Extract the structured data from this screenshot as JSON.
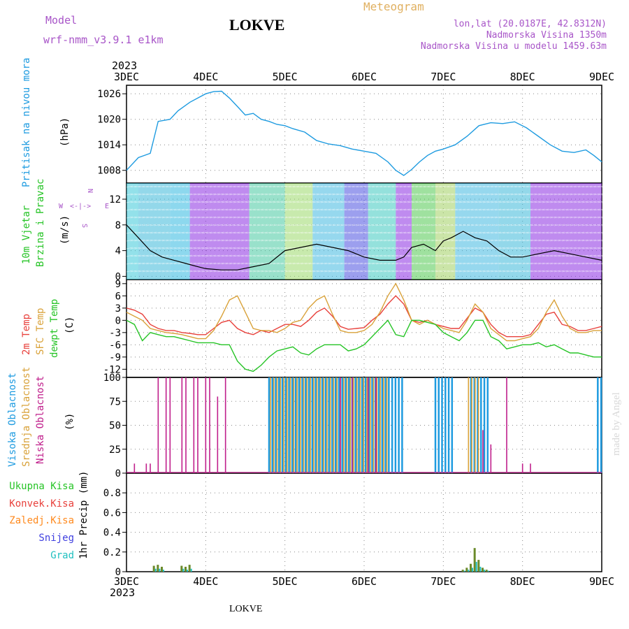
{
  "header": {
    "model_label": "Model",
    "model_value": "wrf-nmm_v3.9.1 e1km",
    "station": "LOKVE",
    "product": "Meteogram",
    "coords": "lon,lat (20.0187E, 42.8312N)",
    "elev": "Nadmorska Visina 1350m",
    "elev_model": "Nadmorska Visina u modelu 1459.63m",
    "footer_station": "LOKVE",
    "watermark": "made by Angel",
    "year_top": "2023",
    "year_bottom": "2023"
  },
  "colors": {
    "pressure": "#1e9be0",
    "temp2m": "#e8413c",
    "sfc": "#d9a23a",
    "dewpt": "#26c426",
    "high_cloud": "#1e9be0",
    "mid_cloud": "#d9a23a",
    "low_cloud": "#c0208c",
    "rain_total": "#26c426",
    "rain_conv": "#e8413c",
    "freezing": "#ff8a1e",
    "snow": "#4040e0",
    "graupel": "#20c0c0",
    "purple_text": "#a855c8",
    "orange_text": "#e0b060"
  },
  "x_axis": {
    "ticks": [
      "3DEC",
      "4DEC",
      "5DEC",
      "6DEC",
      "7DEC",
      "8DEC",
      "9DEC"
    ],
    "start": "2023-12-03 00:00",
    "end": "2023-12-09 00:00"
  },
  "wind_legend": {
    "n": "N",
    "e": "E",
    "w": "W",
    "s": "S",
    "arrow": "<-|->"
  },
  "panels": {
    "pressure": {
      "ylabel": "Pritisak na nivou mora",
      "unit": "(hPa)",
      "ticks": [
        1008,
        1014,
        1020,
        1026
      ]
    },
    "wind": {
      "ylabel1": "10m Vjetar",
      "ylabel2": "Brzina i Pravac",
      "unit": "(m/s)",
      "ticks": [
        0,
        4,
        8,
        12
      ]
    },
    "temp": {
      "ylabel1": "2m Temp",
      "ylabel2": "SFC Temp",
      "ylabel3": "dewpt Temp",
      "unit": "(C)",
      "ticks": [
        -12,
        -9,
        -6,
        -3,
        0,
        3,
        6,
        9
      ]
    },
    "cloud": {
      "ylabel1": "Visoka Oblacnost",
      "ylabel2": "Srednja Oblacnost",
      "ylabel3": "Niska Oblacnost",
      "unit": "(%)",
      "ticks": [
        0,
        25,
        50,
        75,
        100
      ]
    },
    "precip": {
      "legend": [
        "Ukupna Kisa",
        "Konvek.Kisa",
        "Zaledj.Kisa",
        "Snijeg",
        "Grad"
      ],
      "ylabel": "1hr Precip (mm)",
      "ticks": [
        0,
        0.2,
        0.4,
        0.6,
        0.8
      ]
    }
  },
  "chart_data": [
    {
      "type": "line",
      "ylabel": "Pritisak na nivou mora",
      "unit": "hPa",
      "ylim": [
        1005,
        1028
      ],
      "x_unit": "day",
      "x": [
        0,
        0.15,
        0.3,
        0.4,
        0.55,
        0.65,
        0.8,
        0.9,
        1,
        1.1,
        1.2,
        1.3,
        1.4,
        1.5,
        1.6,
        1.7,
        1.8,
        1.9,
        2,
        2.1,
        2.25,
        2.4,
        2.55,
        2.7,
        2.85,
        3,
        3.15,
        3.3,
        3.4,
        3.5,
        3.6,
        3.7,
        3.8,
        3.9,
        4,
        4.15,
        4.3,
        4.45,
        4.6,
        4.75,
        4.9,
        5.05,
        5.2,
        5.35,
        5.5,
        5.65,
        5.8,
        5.9,
        6
      ],
      "series": [
        {
          "name": "Pritisak na nivou mora",
          "values": [
            1008,
            1011,
            1012,
            1019.5,
            1020,
            1022,
            1024,
            1025,
            1026,
            1026.5,
            1026.6,
            1025,
            1023,
            1021,
            1021.4,
            1020,
            1019.5,
            1018.8,
            1018.5,
            1017.8,
            1017,
            1015,
            1014.2,
            1013.8,
            1013,
            1012.5,
            1012,
            1010,
            1008,
            1006.8,
            1008.2,
            1010,
            1011.5,
            1012.5,
            1013,
            1014,
            1016,
            1018.5,
            1019.2,
            1019,
            1019.4,
            1018,
            1016,
            1014,
            1012.5,
            1012.2,
            1012.8,
            1011.5,
            1010
          ]
        }
      ]
    },
    {
      "type": "line",
      "ylabel": "10m Vjetar Brzina i Pravac",
      "unit": "m/s",
      "ylim": [
        -0.5,
        14.5
      ],
      "x_unit": "day",
      "x": [
        0,
        0.15,
        0.3,
        0.45,
        0.6,
        0.75,
        0.9,
        1,
        1.2,
        1.4,
        1.6,
        1.8,
        2,
        2.2,
        2.4,
        2.6,
        2.8,
        3,
        3.2,
        3.4,
        3.5,
        3.6,
        3.75,
        3.9,
        4,
        4.1,
        4.25,
        4.4,
        4.55,
        4.7,
        4.85,
        5,
        5.2,
        5.4,
        5.6,
        5.8,
        6
      ],
      "series": [
        {
          "name": "10m Vjetar",
          "values": [
            8,
            6,
            4,
            3,
            2.5,
            2,
            1.5,
            1.2,
            1,
            1,
            1.5,
            2,
            4,
            4.5,
            5,
            4.5,
            4,
            3,
            2.5,
            2.5,
            3,
            4.5,
            5,
            4,
            5.5,
            6,
            7,
            6,
            5.5,
            4,
            3,
            3,
            3.5,
            4,
            3.5,
            3,
            2.5
          ]
        }
      ]
    },
    {
      "type": "line",
      "ylabel": "2m Temp / SFC Temp / dewpt Temp",
      "unit": "C",
      "ylim": [
        -14,
        10
      ],
      "x_unit": "day",
      "x": [
        0,
        0.1,
        0.2,
        0.3,
        0.4,
        0.5,
        0.6,
        0.7,
        0.8,
        0.9,
        1,
        1.1,
        1.2,
        1.3,
        1.4,
        1.5,
        1.6,
        1.7,
        1.8,
        1.9,
        2,
        2.1,
        2.2,
        2.3,
        2.4,
        2.5,
        2.6,
        2.7,
        2.8,
        2.9,
        3,
        3.1,
        3.2,
        3.3,
        3.4,
        3.5,
        3.6,
        3.7,
        3.8,
        3.9,
        4,
        4.1,
        4.2,
        4.3,
        4.4,
        4.5,
        4.6,
        4.7,
        4.8,
        4.9,
        5,
        5.1,
        5.2,
        5.3,
        5.4,
        5.5,
        5.6,
        5.7,
        5.8,
        5.9,
        6
      ],
      "series": [
        {
          "name": "2m Temp",
          "values": [
            3,
            2.5,
            1.5,
            -1,
            -2,
            -2.5,
            -2.5,
            -3,
            -3.2,
            -3.5,
            -3.5,
            -2,
            -0.5,
            0,
            -2,
            -3,
            -3.5,
            -2.5,
            -3,
            -2,
            -1,
            -1,
            -1.5,
            0,
            2,
            3,
            1,
            -1.5,
            -2.2,
            -2,
            -1.8,
            0,
            1.5,
            4,
            6,
            4,
            0,
            -0.5,
            0,
            -1,
            -1.5,
            -2,
            -2,
            0.5,
            3,
            2,
            -1,
            -3,
            -4,
            -4,
            -4,
            -3.5,
            -1,
            1.5,
            2,
            -1,
            -1.5,
            -2.5,
            -2.5,
            -2,
            -1.5
          ]
        },
        {
          "name": "SFC Temp",
          "values": [
            2,
            1,
            0,
            -2,
            -2.5,
            -3,
            -3.2,
            -3.5,
            -4,
            -4.5,
            -4.5,
            -2.5,
            1,
            5,
            6,
            2,
            -2,
            -2.5,
            -2.5,
            -3,
            -2,
            -0.5,
            0,
            3,
            5,
            6,
            1.5,
            -2.5,
            -3,
            -3,
            -2.5,
            -1,
            2,
            6,
            9,
            5,
            0,
            -1,
            0,
            -1,
            -2,
            -2.5,
            -3,
            0,
            4,
            2,
            -2,
            -3.5,
            -5,
            -5,
            -4.5,
            -4,
            -2,
            2,
            5,
            1,
            -2,
            -3,
            -3,
            -2.5,
            -2.5
          ]
        },
        {
          "name": "dewpt Temp",
          "values": [
            0,
            -1,
            -5,
            -3,
            -3.5,
            -4,
            -4,
            -4.5,
            -5,
            -5.5,
            -5.5,
            -5.5,
            -6,
            -6,
            -10,
            -12,
            -12.5,
            -11,
            -9,
            -7.5,
            -7,
            -6.5,
            -8,
            -8.5,
            -7,
            -6,
            -6,
            -6,
            -7.5,
            -7,
            -6,
            -4,
            -2,
            0,
            -3.5,
            -4,
            0,
            0,
            -0.5,
            -1,
            -3,
            -4,
            -5,
            -3,
            0,
            0,
            -4,
            -5,
            -7,
            -6.5,
            -6,
            -6,
            -5.5,
            -6.5,
            -6,
            -7,
            -8,
            -8,
            -8.5,
            -9,
            -9
          ]
        }
      ]
    },
    {
      "type": "bar",
      "ylabel": "Visoka / Srednja / Niska Oblacnost",
      "unit": "%",
      "ylim": [
        0,
        100
      ],
      "x_unit": "day",
      "series": [
        {
          "name": "Visoka Oblacnost",
          "ranges": [
            [
              1.8,
              3.5
            ],
            [
              3.9,
              4.15
            ],
            [
              4.35,
              4.6
            ],
            [
              5.95,
              6.0
            ]
          ],
          "value": 100
        },
        {
          "name": "Srednja Oblacnost",
          "ranges": [
            [
              1.8,
              3.3
            ],
            [
              4.3,
              4.45
            ]
          ],
          "value": 100
        },
        {
          "name": "Niska Oblacnost",
          "x": [
            0.1,
            0.25,
            0.3,
            0.4,
            0.5,
            0.55,
            0.7,
            0.75,
            0.85,
            0.9,
            1.0,
            1.05,
            1.15,
            1.25,
            2.7,
            2.85,
            3.05,
            3.15,
            4.5,
            4.6,
            4.8,
            5.0,
            5.1
          ],
          "values": [
            10,
            10,
            10,
            100,
            100,
            100,
            100,
            100,
            100,
            100,
            100,
            100,
            80,
            100,
            100,
            100,
            100,
            100,
            45,
            30,
            100,
            10,
            10
          ]
        }
      ]
    },
    {
      "type": "bar",
      "ylabel": "1hr Precip",
      "unit": "mm",
      "ylim": [
        0,
        1.0
      ],
      "x_unit": "day",
      "x": [
        0.35,
        0.4,
        0.45,
        0.7,
        0.75,
        0.8,
        4.25,
        4.3,
        4.35,
        4.4,
        4.45,
        4.5,
        4.55
      ],
      "series": [
        {
          "name": "Ukupna Kisa",
          "values": [
            0.06,
            0.07,
            0.05,
            0.06,
            0.05,
            0.07,
            0.02,
            0.04,
            0.08,
            0.24,
            0.12,
            0.04,
            0.02
          ]
        },
        {
          "name": "Grad",
          "values": [
            0.03,
            0.03,
            0.02,
            0.03,
            0.02,
            0.03,
            0.01,
            0.02,
            0.04,
            0.1,
            0.05,
            0.02,
            0.01
          ]
        }
      ]
    }
  ]
}
